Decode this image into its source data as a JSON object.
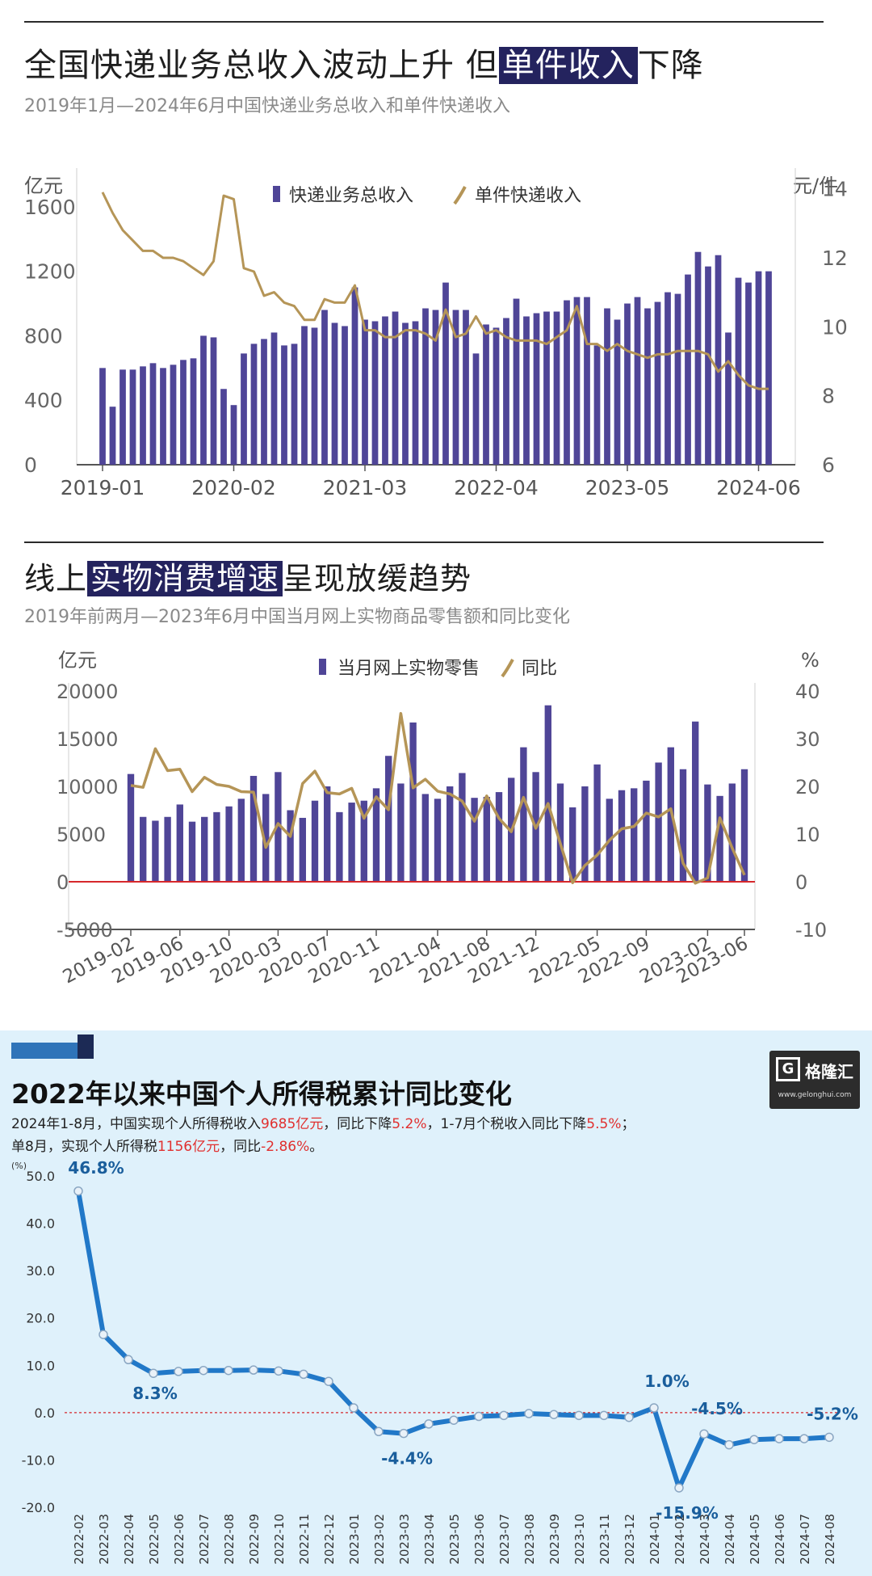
{
  "panel1": {
    "title_pre": "全国快递业务总收入波动上升 但",
    "title_hl": "单件收入",
    "title_post": "下降",
    "subtitle": "2019年1月—2024年6月中国快递业务总收入和单件快递收入",
    "left_unit": "亿元",
    "right_unit": "元/件"
  },
  "panel2": {
    "title_pre": "线上",
    "title_hl": "实物消费增速",
    "title_post": "呈现放缓趋势",
    "subtitle": "2019年前两月—2023年6月中国当月网上实物商品零售额和同比变化",
    "left_unit": "亿元",
    "right_unit": "%"
  },
  "panel3": {
    "title": "2022年以来中国个人所得税累计同比变化",
    "note1_a": "2024年1-8月，中国实现个人所得税收入",
    "note1_b": "9685亿元",
    "note1_c": "，同比下降",
    "note1_d": "5.2%",
    "note1_e": "，1-7月个税收入同比下降",
    "note1_f": "5.5%",
    "note1_g": "；",
    "note2_a": "单8月，实现个人所得税",
    "note2_b": "1156亿元",
    "note2_c": "，同比",
    "note2_d": "-2.86%",
    "note2_e": "。",
    "logo_name": "格隆汇",
    "logo_url": "www.gelonghui.com",
    "unit": "(%)"
  },
  "colors": {
    "bar": "#4f4597",
    "line": "#b59557",
    "blue_line": "#2178c8",
    "zero_line": "#d6282c"
  },
  "chart_data": [
    {
      "type": "bar",
      "title": "全国快递业务总收入波动上升 但单件收入下降",
      "subtitle": "2019年1月—2024年6月中国快递业务总收入和单件快递收入",
      "series": [
        {
          "name": "快递业务总收入",
          "axis": "left",
          "unit": "亿元",
          "values": [
            600,
            360,
            590,
            590,
            610,
            630,
            600,
            620,
            650,
            660,
            800,
            790,
            470,
            370,
            690,
            750,
            780,
            820,
            740,
            750,
            860,
            850,
            960,
            880,
            860,
            1100,
            900,
            890,
            920,
            950,
            880,
            890,
            970,
            960,
            1130,
            960,
            960,
            690,
            870,
            850,
            910,
            1030,
            920,
            940,
            950,
            950,
            1020,
            1040,
            1040,
            740,
            970,
            900,
            1000,
            1040,
            970,
            1010,
            1070,
            1060,
            1180,
            1320,
            1230,
            1300,
            820,
            1160,
            1130,
            1200,
            1200
          ]
        },
        {
          "name": "单件快递收入",
          "type": "line",
          "axis": "right",
          "unit": "元/件",
          "values": [
            13.9,
            13.3,
            12.8,
            12.5,
            12.2,
            12.2,
            12.0,
            12.0,
            11.9,
            11.7,
            11.5,
            11.9,
            13.8,
            13.7,
            11.7,
            11.6,
            10.9,
            11.0,
            10.7,
            10.6,
            10.2,
            10.2,
            10.8,
            10.7,
            10.7,
            11.2,
            9.9,
            9.9,
            9.7,
            9.7,
            9.9,
            9.9,
            9.8,
            9.6,
            10.5,
            9.7,
            9.8,
            10.3,
            9.8,
            9.9,
            9.7,
            9.6,
            9.6,
            9.6,
            9.5,
            9.7,
            9.9,
            10.6,
            9.5,
            9.5,
            9.3,
            9.5,
            9.3,
            9.2,
            9.1,
            9.2,
            9.2,
            9.3,
            9.3,
            9.3,
            9.2,
            8.7,
            9.0,
            8.6,
            8.3,
            8.2,
            8.2
          ]
        }
      ],
      "x_labels": [
        "2019-01",
        "2020-02",
        "2021-03",
        "2022-04",
        "2023-05",
        "2024-06"
      ],
      "y_left": {
        "label": "亿元",
        "ticks": [
          0,
          400,
          800,
          1200,
          1600
        ],
        "range": [
          0,
          1840
        ]
      },
      "y_right": {
        "label": "元/件",
        "ticks": [
          6,
          8,
          10,
          12,
          14
        ],
        "range": [
          6,
          14.6
        ]
      },
      "legend": [
        "快递业务总收入",
        "单件快递收入"
      ],
      "legend_position": "top"
    },
    {
      "type": "bar",
      "title": "线上实物消费增速呈现放缓趋势",
      "subtitle": "2019年前两月—2023年6月中国当月网上实物商品零售额和同比变化",
      "series": [
        {
          "name": "当月网上实物零售",
          "axis": "left",
          "unit": "亿元",
          "values": [
            11300,
            6800,
            6400,
            6800,
            8100,
            6300,
            6800,
            7300,
            7900,
            8700,
            11100,
            9200,
            11500,
            7500,
            6700,
            8500,
            10000,
            7300,
            8300,
            8500,
            9800,
            13200,
            10300,
            16700,
            9200,
            8700,
            10000,
            11400,
            8800,
            8900,
            9400,
            10900,
            14100,
            11500,
            18500,
            10300,
            7800,
            10000,
            12300,
            8700,
            9600,
            9800,
            10600,
            12500,
            14100,
            11800,
            16800,
            10200,
            9000,
            10300,
            11800
          ]
        },
        {
          "name": "同比",
          "type": "line",
          "axis": "right",
          "unit": "%",
          "values": [
            20.2,
            19.8,
            27.9,
            23.3,
            23.6,
            18.9,
            21.9,
            20.4,
            20.0,
            18.9,
            18.8,
            7.2,
            12.2,
            9.5,
            20.6,
            23.2,
            18.7,
            18.4,
            19.6,
            13.3,
            17.8,
            15.1,
            35.3,
            19.7,
            21.5,
            19.0,
            18.4,
            16.9,
            12.7,
            18.0,
            13.3,
            10.5,
            17.7,
            11.2,
            16.4,
            8.0,
            -0.2,
            3.4,
            5.6,
            8.7,
            11.1,
            11.6,
            14.4,
            13.6,
            15.3,
            3.9,
            -0.3,
            0.8,
            13.4,
            7.1,
            1.4
          ]
        }
      ],
      "x_labels": [
        "2019-02",
        "2019-06",
        "2019-10",
        "2020-03",
        "2020-07",
        "2020-11",
        "2021-04",
        "2021-08",
        "2021-12",
        "2022-05",
        "2022-09",
        "2023-02",
        "2023-06"
      ],
      "y_left": {
        "label": "亿元",
        "ticks": [
          -5000,
          0,
          5000,
          10000,
          15000,
          20000
        ],
        "range": [
          -5000,
          20000
        ]
      },
      "y_right": {
        "label": "%",
        "ticks": [
          -10,
          0,
          10,
          20,
          30,
          40
        ],
        "range": [
          -10,
          40
        ]
      },
      "legend": [
        "当月网上实物零售",
        "同比"
      ],
      "legend_position": "top"
    },
    {
      "type": "line",
      "title": "2022年以来中国个人所得税累计同比变化",
      "x": [
        "2022-02",
        "2022-03",
        "2022-04",
        "2022-05",
        "2022-06",
        "2022-07",
        "2022-08",
        "2022-09",
        "2022-10",
        "2022-11",
        "2022-12",
        "2023-01",
        "2023-02",
        "2023-03",
        "2023-04",
        "2023-05",
        "2023-06",
        "2023-07",
        "2023-08",
        "2023-09",
        "2023-10",
        "2023-11",
        "2023-12",
        "2024-01",
        "2024-02",
        "2024-03",
        "2024-04",
        "2024-05",
        "2024-06",
        "2024-07",
        "2024-08"
      ],
      "series": [
        {
          "name": "个人所得税累计同比",
          "values": [
            46.8,
            16.5,
            11.2,
            8.3,
            8.7,
            8.9,
            8.9,
            9.0,
            8.8,
            8.1,
            6.6,
            1.0,
            -4.0,
            -4.4,
            -2.4,
            -1.6,
            -0.8,
            -0.6,
            -0.2,
            -0.4,
            -0.6,
            -0.6,
            -1.0,
            1.0,
            -15.9,
            -4.5,
            -6.8,
            -5.7,
            -5.5,
            -5.5,
            -5.2
          ]
        }
      ],
      "annotations": [
        {
          "x": "2022-02",
          "text": "46.8%"
        },
        {
          "x": "2022-05",
          "text": "8.3%"
        },
        {
          "x": "2023-03",
          "text": "-4.4%"
        },
        {
          "x": "2024-01",
          "text": "1.0%"
        },
        {
          "x": "2024-02",
          "text": "-15.9%"
        },
        {
          "x": "2024-03",
          "text": "-4.5%"
        },
        {
          "x": "2024-08",
          "text": "-5.2%"
        }
      ],
      "ylabel": "(%)",
      "ylim": [
        -20,
        50
      ],
      "yticks": [
        -20.0,
        -10.0,
        0.0,
        10.0,
        20.0,
        30.0,
        40.0,
        50.0
      ]
    }
  ]
}
